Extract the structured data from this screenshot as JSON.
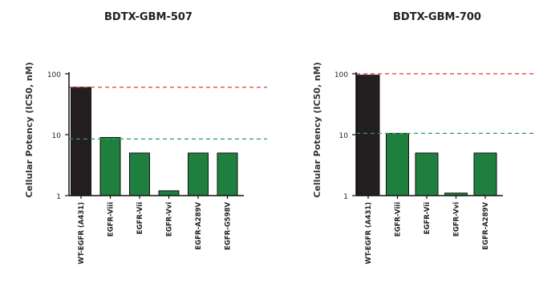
{
  "chart_data": [
    {
      "type": "bar",
      "title": "BDTX-GBM-507",
      "ylabel": "Cellular Potency (IC50, nM)",
      "xlabel": "",
      "yscale": "log",
      "ylim": [
        1,
        100
      ],
      "yticks": [
        "1",
        "10",
        "100"
      ],
      "categories": [
        "WT-EGFR (A431)",
        "EGFR-Viii",
        "EGFR-Vii",
        "EGFR-Vvi",
        "EGFR-A289V",
        "EGFR-G598V"
      ],
      "values": [
        60,
        9,
        5,
        1.2,
        5,
        5
      ],
      "bar_colors": [
        "#231f20",
        "#1f7f3f",
        "#1f7f3f",
        "#1f7f3f",
        "#1f7f3f",
        "#1f7f3f"
      ],
      "reference_lines": [
        {
          "y": 60,
          "color": "#e03a3a",
          "style": "dashed"
        },
        {
          "y": 8.5,
          "color": "#2e9e4a",
          "style": "dashed"
        }
      ],
      "grid": false,
      "legend": "none"
    },
    {
      "type": "bar",
      "title": "BDTX-GBM-700",
      "ylabel": "Cellular Potency (IC50, nM)",
      "xlabel": "",
      "yscale": "log",
      "ylim": [
        1,
        100
      ],
      "yticks": [
        "1",
        "10",
        "100"
      ],
      "categories": [
        "WT-EGFR (A431)",
        "EGFR-Viii",
        "EGFR-Vii",
        "EGFR-Vvi",
        "EGFR-A289V"
      ],
      "values": [
        95,
        10.5,
        5,
        1.1,
        5
      ],
      "bar_colors": [
        "#231f20",
        "#1f7f3f",
        "#1f7f3f",
        "#1f7f3f",
        "#1f7f3f"
      ],
      "reference_lines": [
        {
          "y": 100,
          "color": "#e03a3a",
          "style": "dashed"
        },
        {
          "y": 10.5,
          "color": "#2e9e4a",
          "style": "dashed"
        }
      ],
      "grid": false,
      "legend": "none"
    }
  ]
}
